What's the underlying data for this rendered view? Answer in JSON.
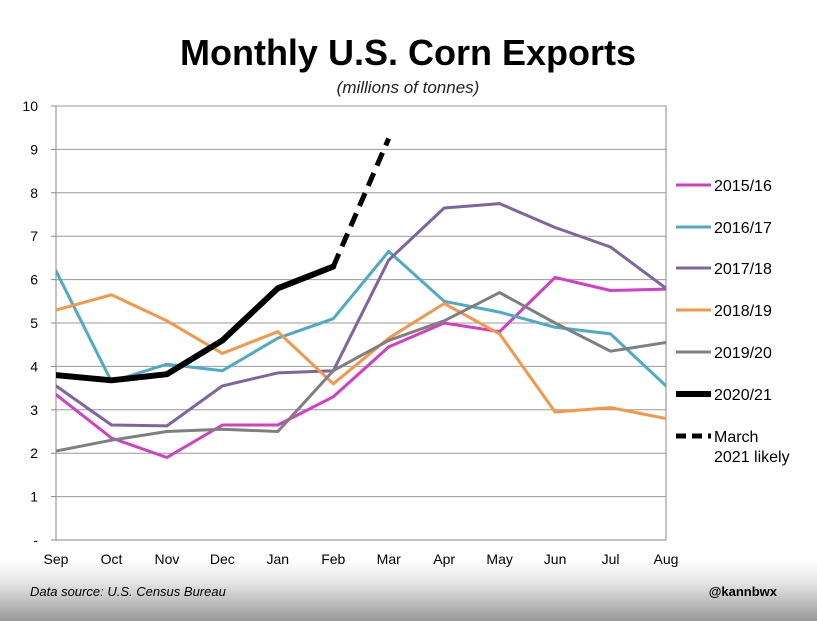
{
  "chart_data": {
    "type": "line",
    "title": "Monthly U.S. Corn Exports",
    "subtitle": "(millions of tonnes)",
    "categories": [
      "Sep",
      "Oct",
      "Nov",
      "Dec",
      "Jan",
      "Feb",
      "Mar",
      "Apr",
      "May",
      "Jun",
      "Jul",
      "Aug"
    ],
    "y_tick_labels": [
      "-",
      "1",
      "2",
      "3",
      "4",
      "5",
      "6",
      "7",
      "8",
      "9",
      "10"
    ],
    "ylim": [
      0,
      10
    ],
    "grid": true,
    "legend_position": "right",
    "series": [
      {
        "name": "2015/16",
        "color": "#d63cc8",
        "width": 3,
        "dashed": false,
        "values": [
          3.35,
          2.35,
          1.9,
          2.65,
          2.65,
          3.3,
          4.45,
          5.0,
          4.8,
          6.05,
          5.75,
          5.78
        ]
      },
      {
        "name": "2016/17",
        "color": "#4bacc6",
        "width": 3,
        "dashed": false,
        "values": [
          6.2,
          3.65,
          4.05,
          3.9,
          4.65,
          5.1,
          6.65,
          5.5,
          5.25,
          4.9,
          4.75,
          3.55
        ]
      },
      {
        "name": "2017/18",
        "color": "#8064a2",
        "width": 3,
        "dashed": false,
        "values": [
          3.55,
          2.65,
          2.63,
          3.55,
          3.85,
          3.9,
          6.45,
          7.65,
          7.75,
          7.2,
          6.75,
          5.8
        ]
      },
      {
        "name": "2018/19",
        "color": "#f79646",
        "width": 3,
        "dashed": false,
        "values": [
          5.3,
          5.65,
          5.05,
          4.3,
          4.8,
          3.6,
          4.65,
          5.45,
          4.75,
          2.95,
          3.05,
          2.8
        ]
      },
      {
        "name": "2019/20",
        "color": "#7f7f7f",
        "width": 3,
        "dashed": false,
        "values": [
          2.05,
          2.3,
          2.5,
          2.55,
          2.5,
          3.9,
          4.6,
          5.05,
          5.7,
          5.0,
          4.35,
          4.55
        ]
      },
      {
        "name": "2020/21",
        "color": "#000000",
        "width": 6,
        "dashed": false,
        "values": [
          3.8,
          3.68,
          3.82,
          4.6,
          5.8,
          6.3,
          null,
          null,
          null,
          null,
          null,
          null
        ]
      },
      {
        "name": "March 2021 likely",
        "color": "#000000",
        "width": 5,
        "dashed": true,
        "values": [
          null,
          null,
          null,
          null,
          null,
          6.3,
          9.25,
          null,
          null,
          null,
          null,
          null
        ]
      }
    ],
    "source_note": "Data source: U.S. Census Bureau",
    "credit": "@kannbwx"
  }
}
